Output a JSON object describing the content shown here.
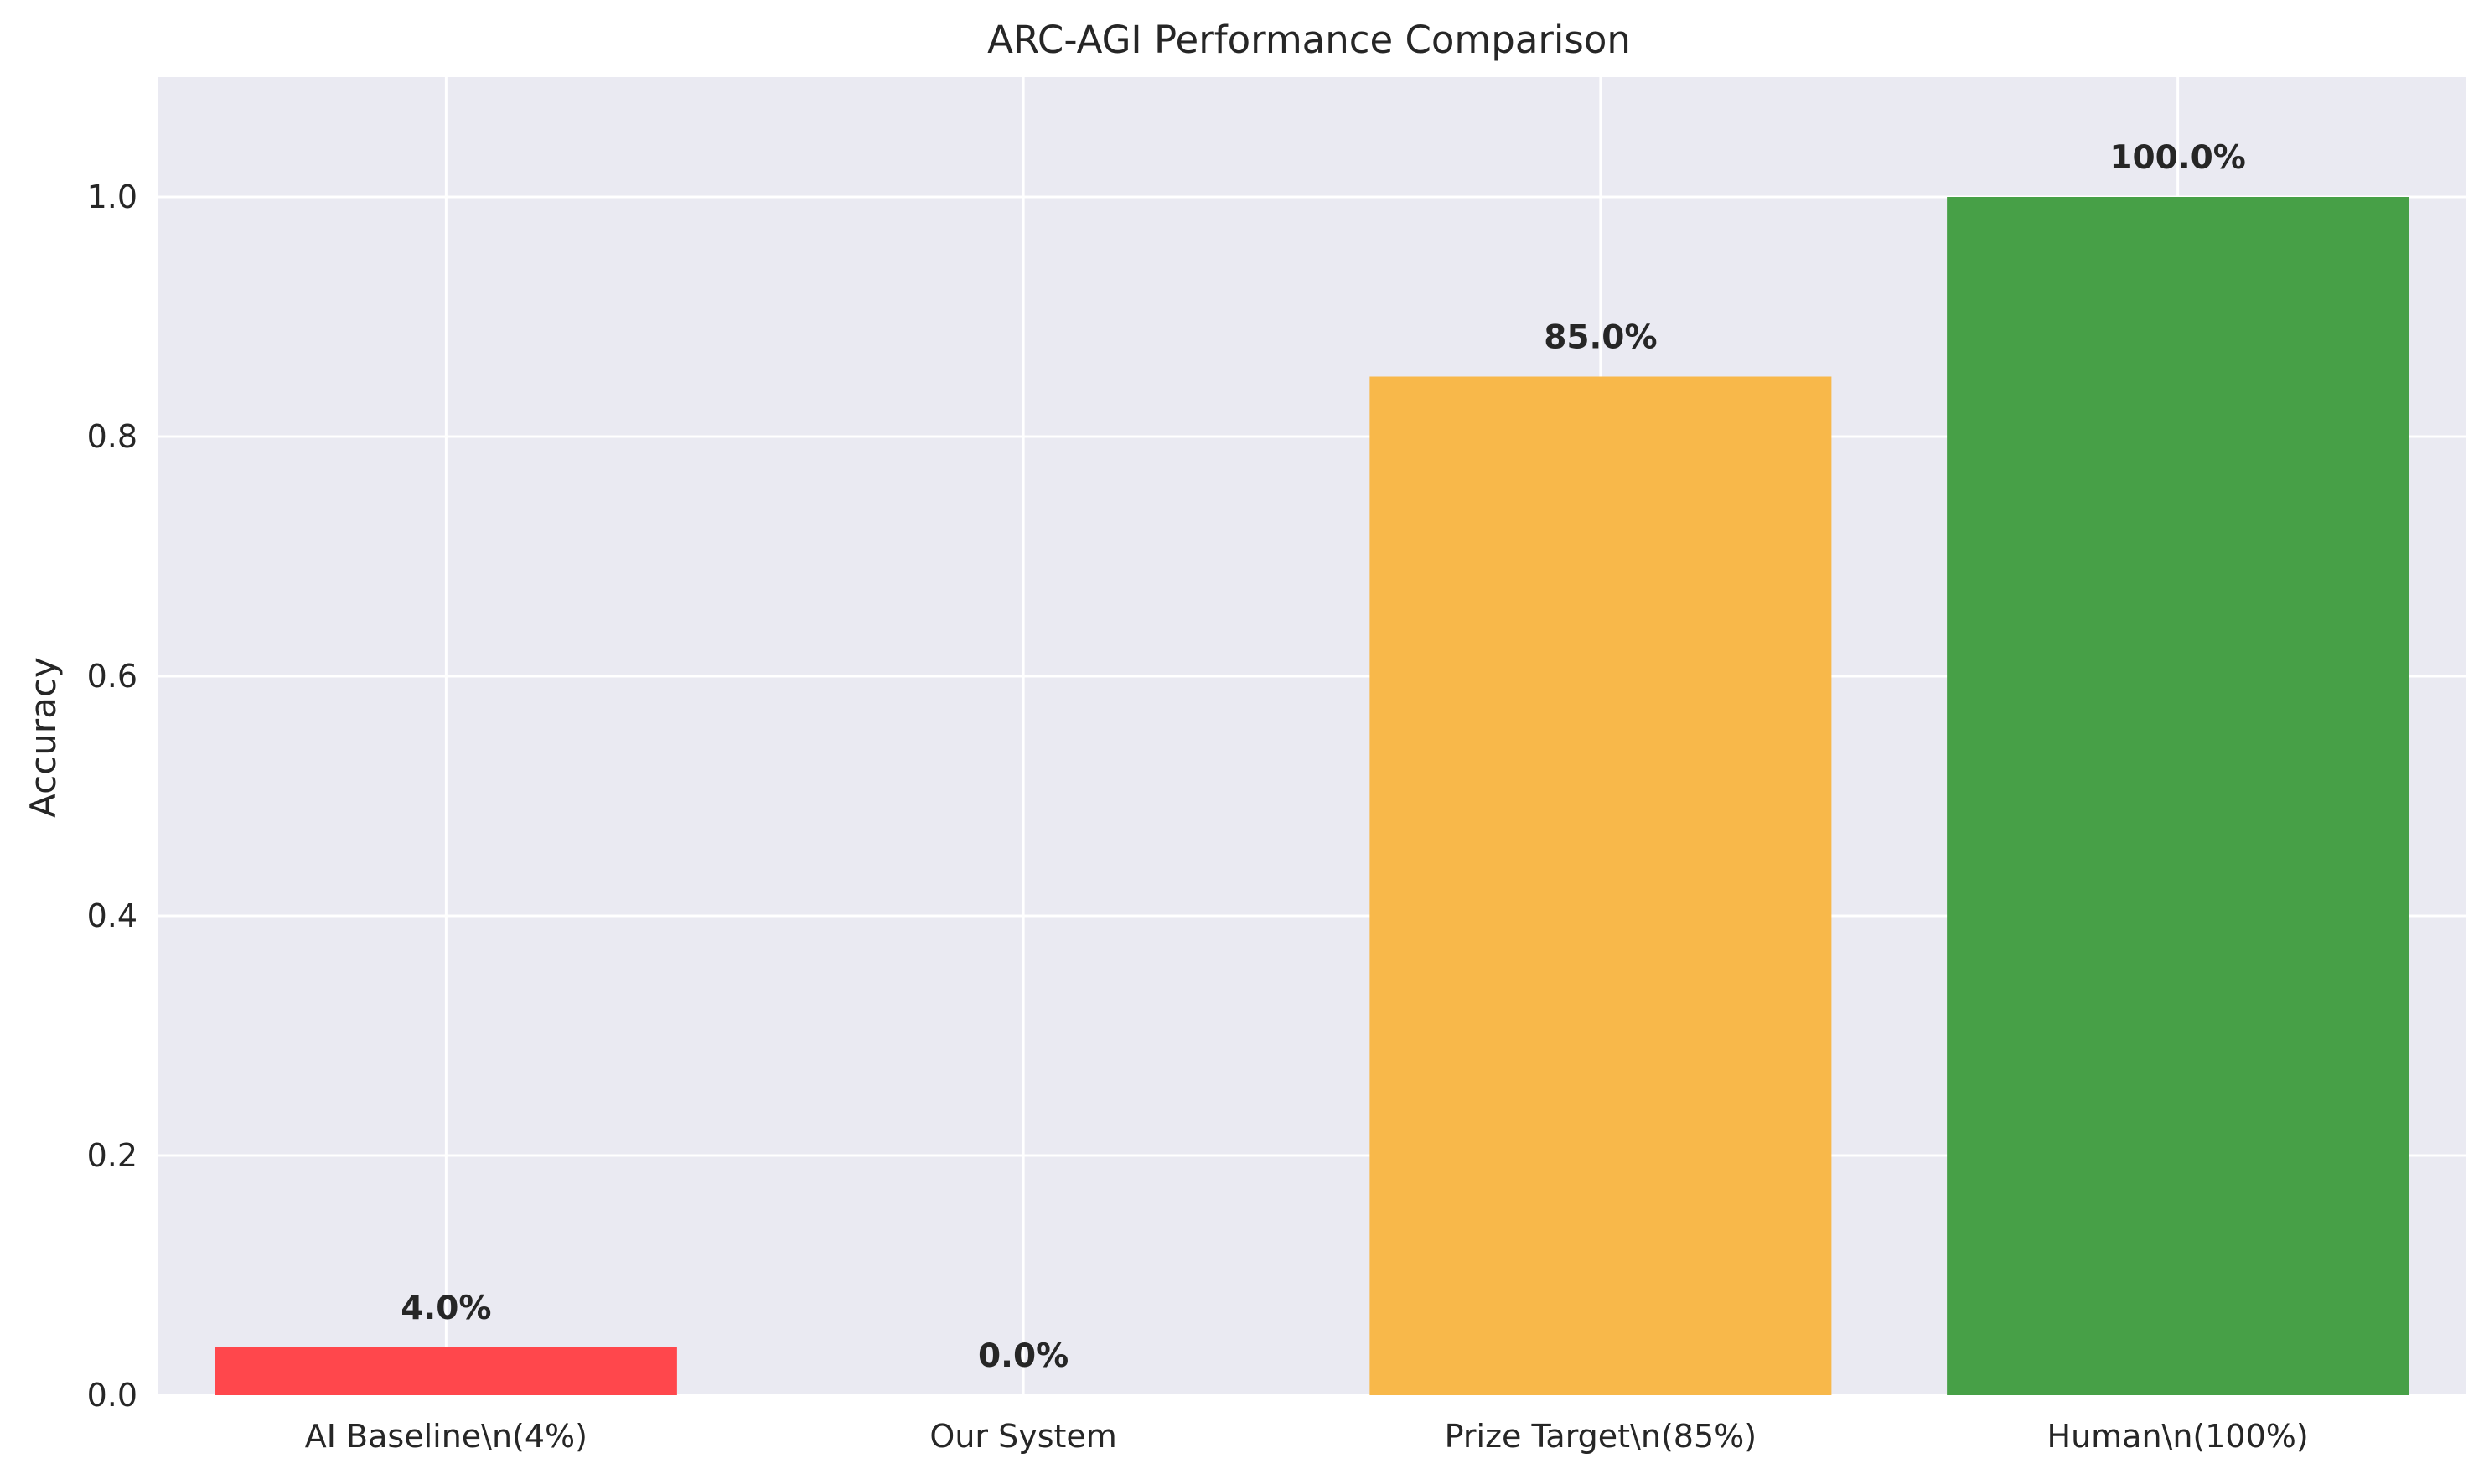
{
  "chart_data": {
    "type": "bar",
    "title": "ARC-AGI Performance Comparison",
    "xlabel": "",
    "ylabel": "Accuracy",
    "ylim": [
      0,
      1.1
    ],
    "yticks": [
      0.0,
      0.2,
      0.4,
      0.6,
      0.8,
      1.0
    ],
    "ytick_labels": [
      "0.0",
      "0.2",
      "0.4",
      "0.6",
      "0.8",
      "1.0"
    ],
    "categories": [
      "AI Baseline\\n(4%)",
      "Our System",
      "Prize Target\\n(85%)",
      "Human\\n(100%)"
    ],
    "values": [
      0.04,
      0.0,
      0.85,
      1.0
    ],
    "data_labels": [
      "4.0%",
      "0.0%",
      "85.0%",
      "100.0%"
    ],
    "colors": [
      "#ff474c",
      "#4a90d9",
      "#f8b84a",
      "#47a047"
    ],
    "background": "#eaeaf2",
    "grid": true,
    "legend": false
  }
}
